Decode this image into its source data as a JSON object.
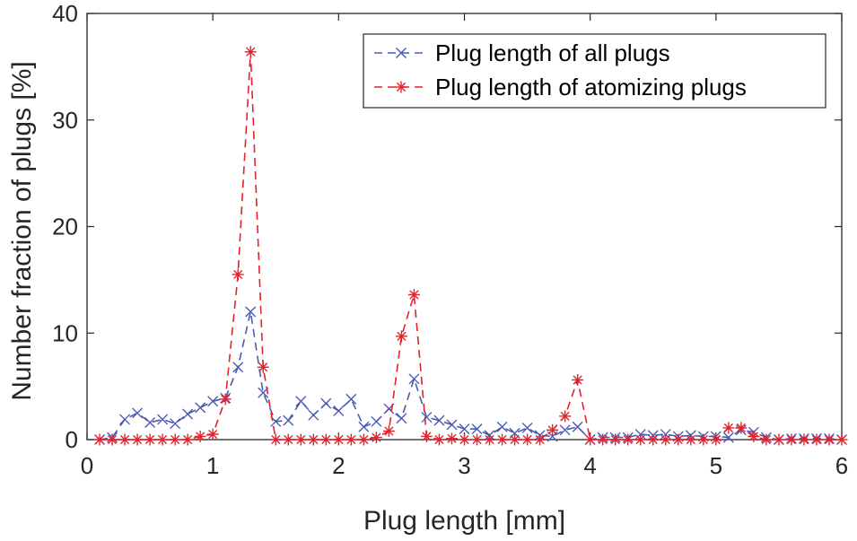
{
  "chart_data": {
    "type": "line",
    "xlabel": "Plug length [mm]",
    "ylabel": "Number fraction of plugs [%]",
    "xlim": [
      0,
      6
    ],
    "ylim": [
      0,
      40
    ],
    "xticks": [
      0,
      1,
      2,
      3,
      4,
      5,
      6
    ],
    "yticks": [
      0,
      10,
      20,
      30,
      40
    ],
    "grid": false,
    "legend_position": "top-right",
    "x": [
      0.1,
      0.2,
      0.3,
      0.4,
      0.5,
      0.6,
      0.7,
      0.8,
      0.9,
      1.0,
      1.1,
      1.2,
      1.3,
      1.4,
      1.5,
      1.6,
      1.7,
      1.8,
      1.9,
      2.0,
      2.1,
      2.2,
      2.3,
      2.4,
      2.5,
      2.6,
      2.7,
      2.8,
      2.9,
      3.0,
      3.1,
      3.2,
      3.3,
      3.4,
      3.5,
      3.6,
      3.7,
      3.8,
      3.9,
      4.0,
      4.1,
      4.2,
      4.3,
      4.4,
      4.5,
      4.6,
      4.7,
      4.8,
      4.9,
      5.0,
      5.1,
      5.2,
      5.3,
      5.4,
      5.5,
      5.6,
      5.7,
      5.8,
      5.9,
      6.0
    ],
    "series": [
      {
        "name": "Plug length of all plugs",
        "color": "#4a5ab0",
        "marker": "x",
        "values": [
          0,
          0.2,
          1.9,
          2.5,
          1.6,
          1.9,
          1.5,
          2.4,
          3.0,
          3.6,
          3.9,
          6.8,
          12.0,
          4.4,
          1.7,
          1.8,
          3.6,
          2.3,
          3.4,
          2.7,
          3.8,
          1.2,
          1.7,
          2.9,
          2.0,
          5.7,
          2.1,
          1.8,
          1.4,
          1.0,
          1.0,
          0.4,
          1.2,
          0.6,
          1.1,
          0.4,
          0.3,
          0.9,
          1.2,
          0,
          0.2,
          0.2,
          0.2,
          0.5,
          0.4,
          0.5,
          0.3,
          0.4,
          0.3,
          0.3,
          0.2,
          0.9,
          0.7,
          0.2,
          0,
          0.1,
          0.1,
          0.1,
          0.1,
          0
        ]
      },
      {
        "name": "Plug length of atomizing plugs",
        "color": "#e8202a",
        "marker": "*",
        "values": [
          0,
          0,
          0,
          0,
          0,
          0,
          0,
          0,
          0.3,
          0.5,
          3.8,
          15.5,
          36.4,
          6.8,
          0,
          0,
          0,
          0,
          0,
          0,
          0,
          0,
          0.2,
          0.8,
          9.7,
          13.6,
          0.3,
          0,
          0.1,
          0,
          0,
          0,
          0,
          0,
          0,
          0,
          0.9,
          2.2,
          5.6,
          0,
          0,
          0,
          0,
          0,
          0,
          0,
          0,
          0,
          0,
          0,
          1.1,
          1.1,
          0.3,
          0,
          0,
          0,
          0,
          0,
          0,
          0
        ]
      }
    ]
  }
}
